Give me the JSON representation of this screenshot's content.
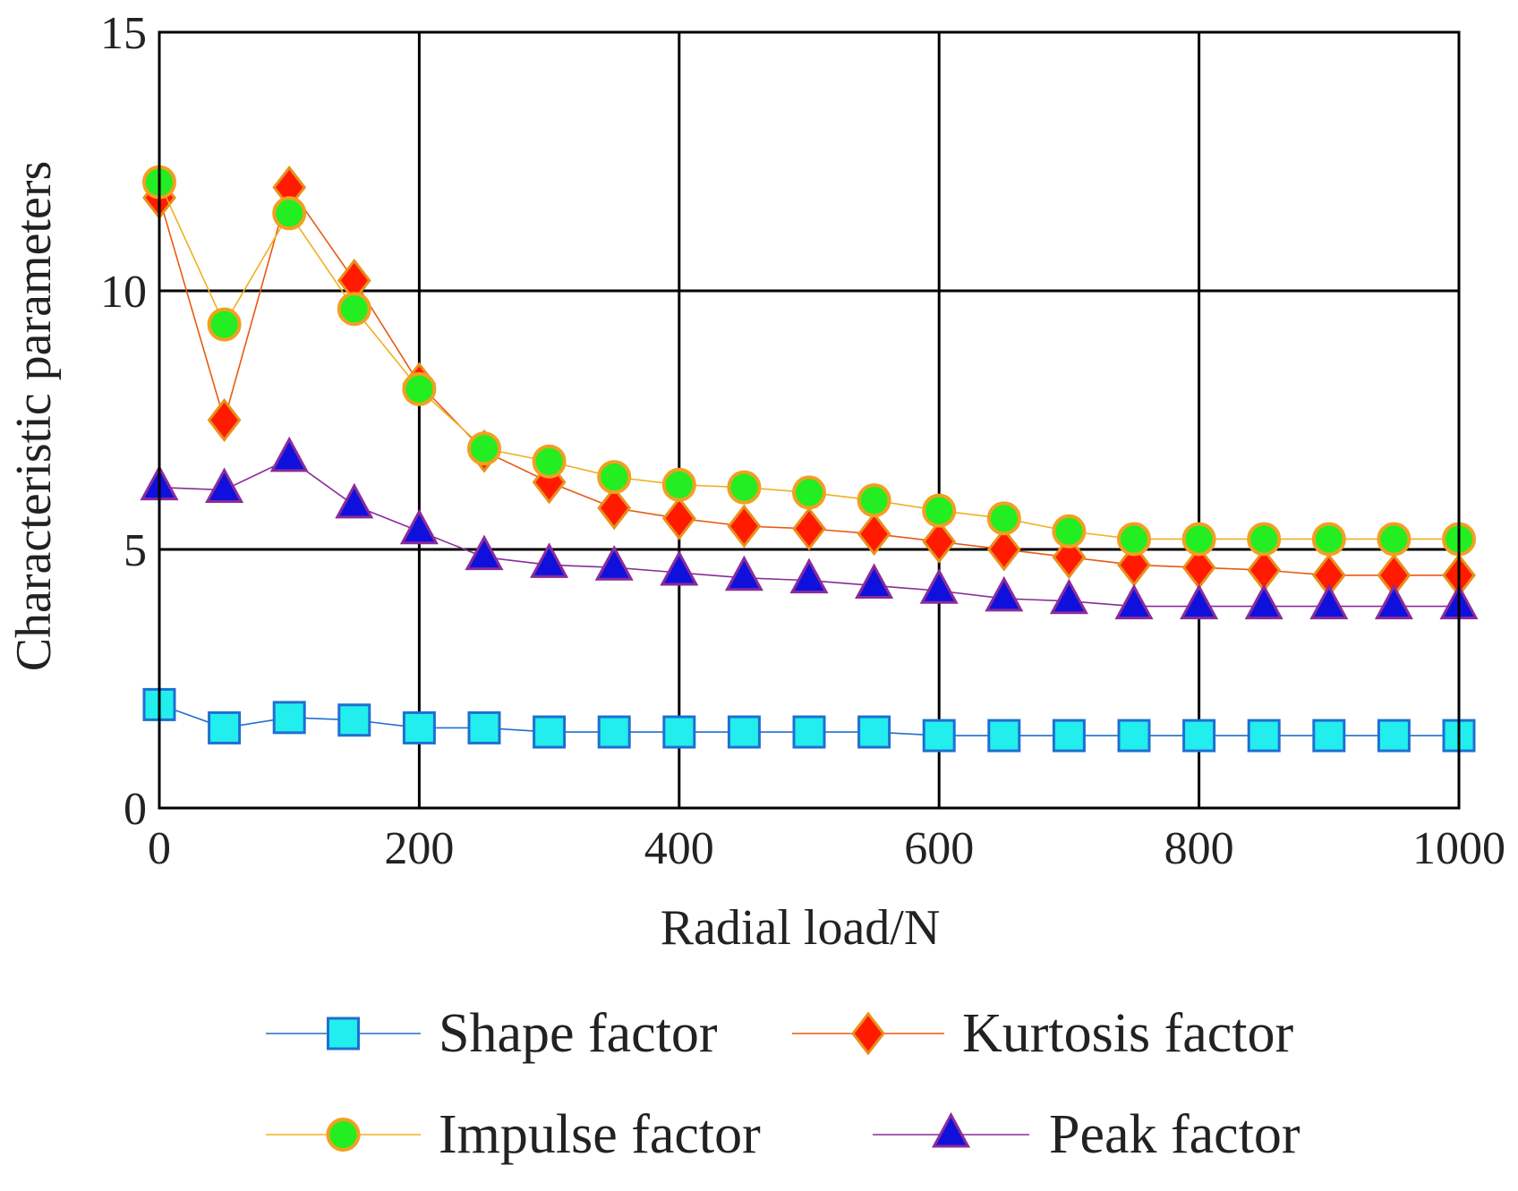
{
  "chart_data": {
    "type": "line",
    "title": "",
    "xlabel": "Radial load/N",
    "ylabel": "Characteristic parameters",
    "xlim": [
      0,
      1000
    ],
    "ylim": [
      0,
      15
    ],
    "xticks": [
      0,
      200,
      400,
      600,
      800,
      1000
    ],
    "yticks": [
      0,
      5,
      10,
      15
    ],
    "xtick_labels": [
      "0",
      "200",
      "400",
      "600",
      "800",
      "1000"
    ],
    "ytick_labels": [
      "0",
      "5",
      "10",
      "15"
    ],
    "grid": true,
    "legend_position": "bottom",
    "x": [
      0,
      50,
      100,
      150,
      200,
      250,
      300,
      350,
      400,
      450,
      500,
      550,
      600,
      650,
      700,
      750,
      800,
      850,
      900,
      950,
      1000
    ],
    "series": [
      {
        "name": "Shape factor",
        "marker": "square",
        "line_color": "#1f6fd0",
        "fill_color": "#22eeee",
        "edge_color": "#1f6fd0",
        "values": [
          2.0,
          1.55,
          1.75,
          1.7,
          1.55,
          1.55,
          1.47,
          1.47,
          1.47,
          1.47,
          1.47,
          1.47,
          1.4,
          1.4,
          1.4,
          1.4,
          1.4,
          1.4,
          1.4,
          1.4,
          1.4
        ]
      },
      {
        "name": "Kurtosis factor",
        "marker": "diamond",
        "line_color": "#e85a10",
        "fill_color": "#ff1a00",
        "edge_color": "#e8901a",
        "values": [
          11.8,
          7.5,
          12.0,
          10.2,
          8.2,
          6.9,
          6.3,
          5.8,
          5.6,
          5.45,
          5.4,
          5.3,
          5.15,
          5.0,
          4.85,
          4.7,
          4.65,
          4.6,
          4.5,
          4.5,
          4.5
        ]
      },
      {
        "name": "Impulse factor",
        "marker": "circle",
        "line_color": "#f0b020",
        "fill_color": "#22ee22",
        "edge_color": "#f0a020",
        "values": [
          12.1,
          9.35,
          11.5,
          9.65,
          8.1,
          6.95,
          6.7,
          6.4,
          6.25,
          6.2,
          6.1,
          5.95,
          5.75,
          5.6,
          5.35,
          5.2,
          5.2,
          5.2,
          5.2,
          5.2,
          5.2
        ]
      },
      {
        "name": "Peak factor",
        "marker": "triangle",
        "line_color": "#8a2c9a",
        "fill_color": "#1010dd",
        "edge_color": "#8a2c9a",
        "values": [
          6.2,
          6.15,
          6.75,
          5.85,
          5.35,
          4.85,
          4.7,
          4.65,
          4.55,
          4.45,
          4.4,
          4.3,
          4.2,
          4.05,
          4.0,
          3.9,
          3.9,
          3.9,
          3.9,
          3.9,
          3.9
        ]
      }
    ]
  }
}
